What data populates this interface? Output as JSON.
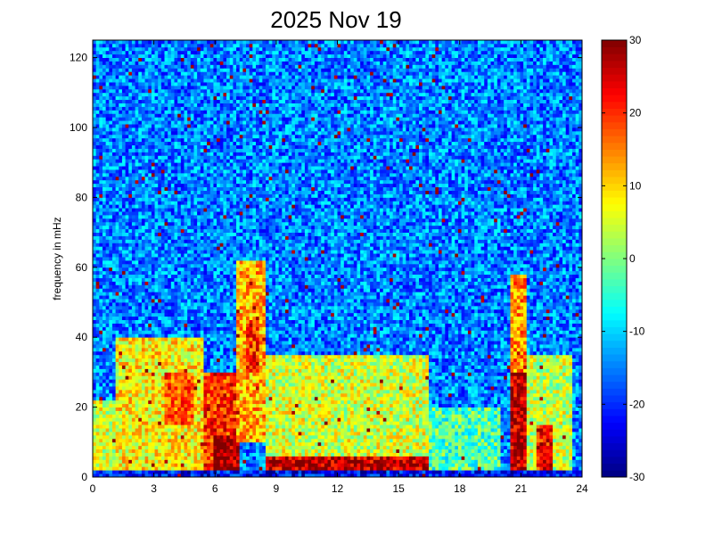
{
  "chart_data": {
    "type": "heatmap",
    "title": "2025 Nov 19",
    "xlabel": "",
    "ylabel": "frequency in mHz",
    "xlim": [
      0,
      24
    ],
    "ylim": [
      0,
      125
    ],
    "x_ticks": [
      "0",
      "3",
      "6",
      "9",
      "12",
      "15",
      "18",
      "21",
      "24"
    ],
    "y_ticks": [
      "0",
      "20",
      "40",
      "60",
      "80",
      "100",
      "120"
    ],
    "colorbar": {
      "colormap": "jet",
      "range": [
        -30,
        30
      ],
      "ticks": [
        "-30",
        "-20",
        "-10",
        "0",
        "10",
        "20",
        "30"
      ]
    },
    "grid": false,
    "background_level": -15,
    "features": [
      {
        "x_range": [
          0,
          1.2
        ],
        "y_range": [
          0,
          22
        ],
        "level": 5
      },
      {
        "x_range": [
          1.2,
          5.5
        ],
        "y_range": [
          0,
          40
        ],
        "level": 8
      },
      {
        "x_range": [
          3.5,
          5.0
        ],
        "y_range": [
          15,
          30
        ],
        "level": 18
      },
      {
        "x_range": [
          5.5,
          7.0
        ],
        "y_range": [
          0,
          30
        ],
        "level": 20
      },
      {
        "x_range": [
          6.0,
          7.2
        ],
        "y_range": [
          0,
          12
        ],
        "level": 28
      },
      {
        "x_range": [
          7.0,
          8.5
        ],
        "y_range": [
          10,
          62
        ],
        "level": 12
      },
      {
        "x_range": [
          7.5,
          8.2
        ],
        "y_range": [
          30,
          45
        ],
        "level": 20
      },
      {
        "x_range": [
          8.5,
          16.5
        ],
        "y_range": [
          0,
          35
        ],
        "level": 5
      },
      {
        "x_range": [
          8.5,
          16.5
        ],
        "y_range": [
          2,
          6
        ],
        "level": 26
      },
      {
        "x_range": [
          16.5,
          20.0
        ],
        "y_range": [
          0,
          20
        ],
        "level": -3
      },
      {
        "x_range": [
          20.5,
          21.3
        ],
        "y_range": [
          0,
          58
        ],
        "level": 14
      },
      {
        "x_range": [
          20.5,
          21.3
        ],
        "y_range": [
          0,
          30
        ],
        "level": 26
      },
      {
        "x_range": [
          21.3,
          23.5
        ],
        "y_range": [
          0,
          35
        ],
        "level": 4
      },
      {
        "x_range": [
          21.8,
          22.5
        ],
        "y_range": [
          0,
          15
        ],
        "level": 22
      },
      {
        "x_range": [
          0,
          24
        ],
        "y_range": [
          0,
          1.5
        ],
        "level": -22
      }
    ]
  }
}
